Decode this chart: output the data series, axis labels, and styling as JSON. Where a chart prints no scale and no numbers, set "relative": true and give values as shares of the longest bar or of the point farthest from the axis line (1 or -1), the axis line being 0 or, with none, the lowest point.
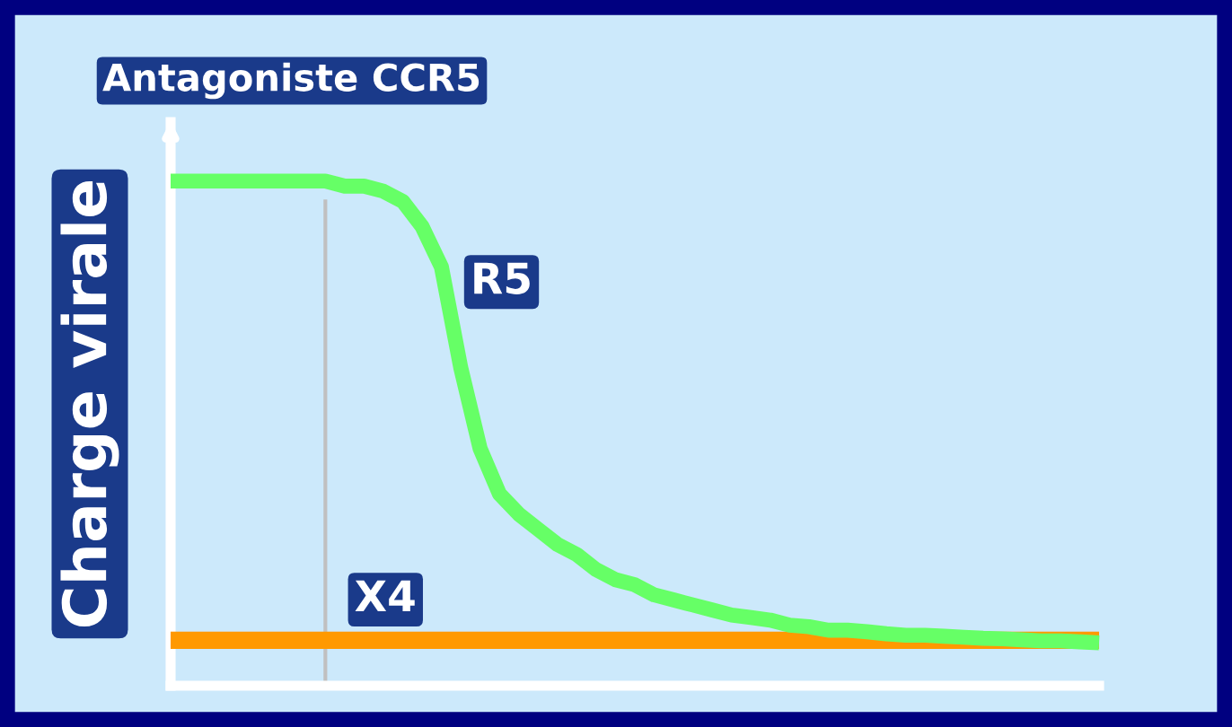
{
  "chart_data": {
    "type": "line",
    "title": "Antagoniste CCR5",
    "ylabel": "Charge virale",
    "relative": true,
    "categories": [
      null,
      null,
      null,
      null,
      null,
      null,
      null,
      null,
      null,
      null,
      null,
      null,
      null,
      null,
      null,
      null,
      null,
      null,
      null,
      null,
      null,
      null,
      null,
      null,
      null,
      null,
      null,
      null,
      null,
      null,
      null,
      null,
      null,
      null,
      null,
      null,
      null,
      null,
      null,
      null,
      null,
      null,
      null,
      null,
      null,
      null,
      null,
      null,
      null
    ],
    "series": [
      {
        "name": "X4",
        "color": "#ff9900",
        "values": [
          0.09,
          0.09,
          0.09,
          0.09,
          0.09,
          0.09,
          0.09,
          0.09,
          0.09,
          0.09,
          0.09,
          0.09,
          0.09,
          0.09,
          0.09,
          0.09,
          0.09,
          0.09,
          0.09,
          0.09,
          0.09,
          0.09,
          0.09,
          0.09,
          0.09,
          0.09,
          0.09,
          0.09,
          0.09,
          0.09,
          0.09,
          0.09,
          0.09,
          0.09,
          0.09,
          0.09,
          0.09,
          0.09,
          0.09,
          0.09,
          0.09,
          0.09,
          0.09,
          0.09,
          0.09,
          0.09,
          0.09,
          0.09,
          0.09
        ]
      },
      {
        "name": "R5",
        "color": "#66ff66",
        "values": [
          1.0,
          1.0,
          1.0,
          1.0,
          1.0,
          1.0,
          1.0,
          1.0,
          1.0,
          0.99,
          0.99,
          0.98,
          0.96,
          0.91,
          0.83,
          0.63,
          0.47,
          0.38,
          0.34,
          0.31,
          0.28,
          0.26,
          0.23,
          0.21,
          0.2,
          0.18,
          0.17,
          0.16,
          0.15,
          0.14,
          0.135,
          0.13,
          0.12,
          0.117,
          0.11,
          0.11,
          0.107,
          0.103,
          0.1,
          0.1,
          0.098,
          0.096,
          0.094,
          0.093,
          0.091,
          0.089,
          0.089,
          0.087,
          0.085
        ]
      }
    ],
    "legend": false,
    "grid": false,
    "marker": "none",
    "line_style": "solid"
  }
}
